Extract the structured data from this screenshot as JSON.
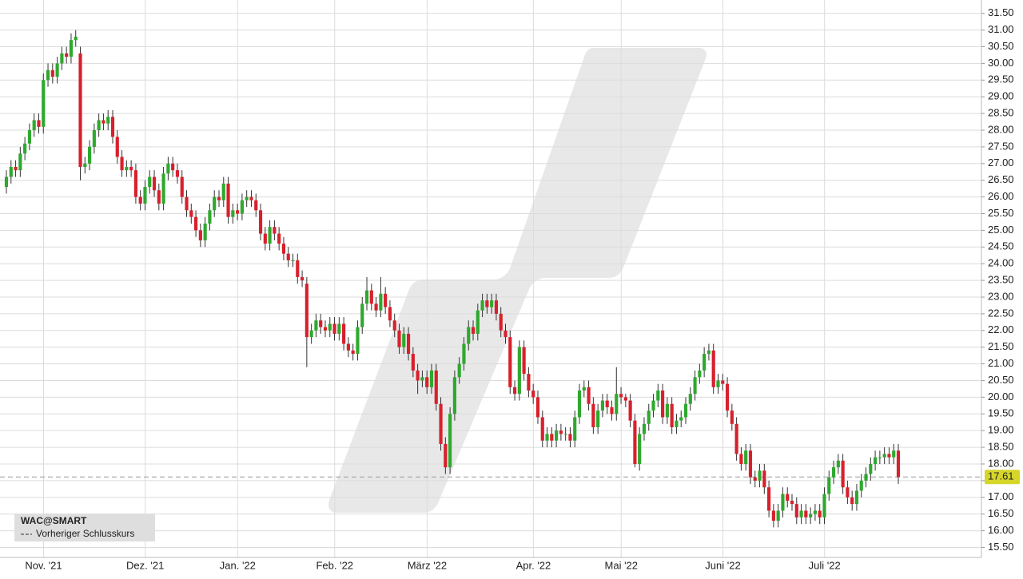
{
  "chart_data": {
    "type": "candlestick",
    "up_color": "#2fa82f",
    "down_color": "#d8202c",
    "grid": true,
    "legend": {
      "symbol": "WAC@SMART",
      "line_label": "Vorheriger Schlusskurs"
    },
    "reference_line": {
      "value": 17.61,
      "color": "#999999"
    },
    "ylim": [
      15.2,
      31.9
    ],
    "yticks": [
      {
        "value": 15.5,
        "label": "15.50"
      },
      {
        "value": 16,
        "label": "16.00"
      },
      {
        "value": 16.5,
        "label": "16.50"
      },
      {
        "value": 17,
        "label": "17.00"
      },
      {
        "value": 17.5,
        "label": "17.50"
      },
      {
        "value": 18,
        "label": "18.00"
      },
      {
        "value": 18.5,
        "label": "18.50"
      },
      {
        "value": 19,
        "label": "19.00"
      },
      {
        "value": 19.5,
        "label": "19.50"
      },
      {
        "value": 20,
        "label": "20.00"
      },
      {
        "value": 20.5,
        "label": "20.50"
      },
      {
        "value": 21,
        "label": "21.00"
      },
      {
        "value": 21.5,
        "label": "21.50"
      },
      {
        "value": 22,
        "label": "22.00"
      },
      {
        "value": 22.5,
        "label": "22.50"
      },
      {
        "value": 23,
        "label": "23.00"
      },
      {
        "value": 23.5,
        "label": "23.50"
      },
      {
        "value": 24,
        "label": "24.00"
      },
      {
        "value": 24.5,
        "label": "24.50"
      },
      {
        "value": 25,
        "label": "25.00"
      },
      {
        "value": 25.5,
        "label": "25.50"
      },
      {
        "value": 26,
        "label": "26.00"
      },
      {
        "value": 26.5,
        "label": "26.50"
      },
      {
        "value": 27,
        "label": "27.00"
      },
      {
        "value": 27.5,
        "label": "27.50"
      },
      {
        "value": 28,
        "label": "28.00"
      },
      {
        "value": 28.5,
        "label": "28.50"
      },
      {
        "value": 29,
        "label": "29.00"
      },
      {
        "value": 29.5,
        "label": "29.50"
      },
      {
        "value": 30,
        "label": "30.00"
      },
      {
        "value": 30.5,
        "label": "30.50"
      },
      {
        "value": 31,
        "label": "31.00"
      },
      {
        "value": 31.5,
        "label": "31.50"
      }
    ],
    "categories": [
      null,
      null,
      null,
      null,
      null,
      null,
      null,
      "Nov. '21",
      null,
      null,
      null,
      null,
      null,
      null,
      null,
      null,
      null,
      null,
      null,
      null,
      null,
      null,
      null,
      null,
      null,
      null,
      null,
      null,
      null,
      "Dez. '21",
      null,
      null,
      null,
      null,
      null,
      null,
      null,
      null,
      null,
      null,
      null,
      null,
      null,
      null,
      null,
      null,
      null,
      null,
      null,
      "Jan. '22",
      null,
      null,
      null,
      null,
      null,
      null,
      null,
      null,
      null,
      null,
      null,
      null,
      null,
      null,
      null,
      null,
      null,
      null,
      null,
      null,
      "Feb. '22",
      null,
      null,
      null,
      null,
      null,
      null,
      null,
      null,
      null,
      null,
      null,
      null,
      null,
      null,
      null,
      null,
      null,
      null,
      null,
      "März '22",
      null,
      null,
      null,
      null,
      null,
      null,
      null,
      null,
      null,
      null,
      null,
      null,
      null,
      null,
      null,
      null,
      null,
      null,
      null,
      null,
      null,
      null,
      "Apr. '22",
      null,
      null,
      null,
      null,
      null,
      null,
      null,
      null,
      null,
      null,
      null,
      null,
      null,
      null,
      null,
      null,
      null,
      null,
      "Mai '22",
      null,
      null,
      null,
      null,
      null,
      null,
      null,
      null,
      null,
      null,
      null,
      null,
      null,
      null,
      null,
      null,
      null,
      null,
      null,
      null,
      null,
      "Juni '22",
      null,
      null,
      null,
      null,
      null,
      null,
      null,
      null,
      null,
      null,
      null,
      null,
      null,
      null,
      null,
      null,
      null,
      null,
      null,
      null,
      null,
      "Juli '22",
      null,
      null,
      null,
      null,
      null,
      null,
      null,
      null,
      null,
      null,
      null,
      null,
      null,
      null,
      null,
      null,
      null
    ],
    "open": [
      26.3,
      26.6,
      26.9,
      26.8,
      27.3,
      27.6,
      28.0,
      28.3,
      28.1,
      29.5,
      29.8,
      29.6,
      30.0,
      30.3,
      30.2,
      30.7,
      30.3,
      26.9,
      27.0,
      27.5,
      28.0,
      28.3,
      28.2,
      28.4,
      27.8,
      27.2,
      26.8,
      26.9,
      26.8,
      26.0,
      25.8,
      26.3,
      26.6,
      26.2,
      25.8,
      26.7,
      27.0,
      26.8,
      26.6,
      26.0,
      25.6,
      25.4,
      25.0,
      24.7,
      25.2,
      25.6,
      26.0,
      25.9,
      26.4,
      25.4,
      25.6,
      25.5,
      25.9,
      26.0,
      25.9,
      25.6,
      24.9,
      24.6,
      25.1,
      24.9,
      24.6,
      24.3,
      24.1,
      24.1,
      23.6,
      23.4,
      21.8,
      22.0,
      22.3,
      22.1,
      22.0,
      22.2,
      21.9,
      22.2,
      21.6,
      21.4,
      21.3,
      22.1,
      22.8,
      23.2,
      22.8,
      22.6,
      23.1,
      22.7,
      22.3,
      22.0,
      21.5,
      21.9,
      21.3,
      20.8,
      20.5,
      20.6,
      20.3,
      20.8,
      19.8,
      18.6,
      17.9,
      19.5,
      20.6,
      21.0,
      21.6,
      22.1,
      21.9,
      22.6,
      22.9,
      22.7,
      22.9,
      22.5,
      22.0,
      21.8,
      20.3,
      20.1,
      21.5,
      20.7,
      20.2,
      20.0,
      19.4,
      18.7,
      18.9,
      18.7,
      19.0,
      18.9,
      18.9,
      18.7,
      19.4,
      20.2,
      20.3,
      19.8,
      19.1,
      19.6,
      19.9,
      19.7,
      19.5,
      20.1,
      20.0,
      19.9,
      19.3,
      18.0,
      18.9,
      19.2,
      19.6,
      19.9,
      20.2,
      19.4,
      19.8,
      19.1,
      19.3,
      19.4,
      19.8,
      20.1,
      20.6,
      20.8,
      21.3,
      21.4,
      20.3,
      20.5,
      20.4,
      19.6,
      19.2,
      18.3,
      18.0,
      18.4,
      17.6,
      17.5,
      17.8,
      17.3,
      16.6,
      16.3,
      16.6,
      17.1,
      16.9,
      16.8,
      16.4,
      16.6,
      16.4,
      16.5,
      16.6,
      16.4,
      17.1,
      17.6,
      17.9,
      18.1,
      17.3,
      17.0,
      16.8,
      17.2,
      17.5,
      17.7,
      18.0,
      18.2,
      18.2,
      18.3,
      18.2,
      18.4
    ],
    "high": [
      26.8,
      27.1,
      27.1,
      27.5,
      27.8,
      28.2,
      28.5,
      28.5,
      29.7,
      30.0,
      30.0,
      30.2,
      30.5,
      30.5,
      30.9,
      31.0,
      30.5,
      27.2,
      27.7,
      28.2,
      28.5,
      28.5,
      28.6,
      28.6,
      28.0,
      27.4,
      27.1,
      27.1,
      27.0,
      26.2,
      26.5,
      26.8,
      26.8,
      26.4,
      26.9,
      27.2,
      27.2,
      27.0,
      26.8,
      26.2,
      25.8,
      25.6,
      25.2,
      25.4,
      25.8,
      26.2,
      26.2,
      26.6,
      26.6,
      25.8,
      25.8,
      26.1,
      26.2,
      26.2,
      26.1,
      25.8,
      25.1,
      25.3,
      25.3,
      25.1,
      24.8,
      24.5,
      24.3,
      24.3,
      23.8,
      23.6,
      22.2,
      22.5,
      22.5,
      22.3,
      22.4,
      22.4,
      22.4,
      22.4,
      21.8,
      21.6,
      22.3,
      23.0,
      23.6,
      23.4,
      23.0,
      23.6,
      23.3,
      22.9,
      22.5,
      22.2,
      22.1,
      22.1,
      21.5,
      21.0,
      20.8,
      20.8,
      21.0,
      21.0,
      20.0,
      18.8,
      19.7,
      20.8,
      21.2,
      21.8,
      22.3,
      22.3,
      22.8,
      23.1,
      23.1,
      23.1,
      23.1,
      22.7,
      22.2,
      22.0,
      20.5,
      21.7,
      21.7,
      20.9,
      20.4,
      20.2,
      19.6,
      19.1,
      19.1,
      19.2,
      19.2,
      19.1,
      19.1,
      19.6,
      20.4,
      20.5,
      20.5,
      20.0,
      19.8,
      20.1,
      20.1,
      19.9,
      20.9,
      20.3,
      20.1,
      20.1,
      19.5,
      19.1,
      19.4,
      19.8,
      20.1,
      20.4,
      20.4,
      20.0,
      20.0,
      19.5,
      19.6,
      20.0,
      20.3,
      20.8,
      21.0,
      21.5,
      21.6,
      21.6,
      20.7,
      20.7,
      20.6,
      19.8,
      19.4,
      18.5,
      18.6,
      18.6,
      17.8,
      18.0,
      18.0,
      17.5,
      16.8,
      16.8,
      17.3,
      17.3,
      17.1,
      17.0,
      16.8,
      16.8,
      16.7,
      16.8,
      16.8,
      17.3,
      17.8,
      18.1,
      18.3,
      18.3,
      17.5,
      17.2,
      17.4,
      17.7,
      17.9,
      18.2,
      18.4,
      18.4,
      18.5,
      18.5,
      18.6,
      18.6
    ],
    "low": [
      26.1,
      26.4,
      26.6,
      26.6,
      27.1,
      27.4,
      27.8,
      27.9,
      27.9,
      29.3,
      29.4,
      29.4,
      29.8,
      30.0,
      30.0,
      30.5,
      26.5,
      26.7,
      26.8,
      27.3,
      27.8,
      28.0,
      28.0,
      27.6,
      27.0,
      26.6,
      26.6,
      26.6,
      25.8,
      25.6,
      25.6,
      26.1,
      26.0,
      25.6,
      25.6,
      26.5,
      26.6,
      26.4,
      25.8,
      25.4,
      25.2,
      24.8,
      24.5,
      24.5,
      25.0,
      25.4,
      25.7,
      25.7,
      25.2,
      25.2,
      25.3,
      25.3,
      25.7,
      25.7,
      25.4,
      24.7,
      24.4,
      24.4,
      24.7,
      24.4,
      24.1,
      23.9,
      23.9,
      23.4,
      23.3,
      20.9,
      21.6,
      21.8,
      21.9,
      21.8,
      21.8,
      21.7,
      21.7,
      21.4,
      21.2,
      21.1,
      21.1,
      21.9,
      22.6,
      22.6,
      22.4,
      22.4,
      22.5,
      22.1,
      21.8,
      21.3,
      21.3,
      21.1,
      20.6,
      20.1,
      20.3,
      20.1,
      20.1,
      19.6,
      18.4,
      17.7,
      17.7,
      19.3,
      20.4,
      20.8,
      21.4,
      21.7,
      21.7,
      22.4,
      22.5,
      22.5,
      22.3,
      21.8,
      21.6,
      20.1,
      19.9,
      19.9,
      20.5,
      20.0,
      19.8,
      19.2,
      18.5,
      18.5,
      18.5,
      18.5,
      18.7,
      18.7,
      18.5,
      18.5,
      19.2,
      20.0,
      19.6,
      18.9,
      18.9,
      19.4,
      19.5,
      19.3,
      19.3,
      19.8,
      19.7,
      19.1,
      17.9,
      17.8,
      18.7,
      19.0,
      19.4,
      19.7,
      19.2,
      19.2,
      18.9,
      18.9,
      19.1,
      19.2,
      19.6,
      19.9,
      20.4,
      20.6,
      21.1,
      20.1,
      20.1,
      20.2,
      19.4,
      19.0,
      18.1,
      17.8,
      17.8,
      17.4,
      17.3,
      17.3,
      17.1,
      16.4,
      16.1,
      16.1,
      16.4,
      16.7,
      16.6,
      16.2,
      16.2,
      16.2,
      16.2,
      16.3,
      16.2,
      16.2,
      16.9,
      17.4,
      17.7,
      17.1,
      16.8,
      16.6,
      16.6,
      17.0,
      17.3,
      17.5,
      17.8,
      18.0,
      18.0,
      18.0,
      18.0,
      17.4
    ],
    "close": [
      26.6,
      26.9,
      26.8,
      27.3,
      27.6,
      28.0,
      28.3,
      28.1,
      29.5,
      29.8,
      29.6,
      30.0,
      30.3,
      30.2,
      30.7,
      30.8,
      26.9,
      27.0,
      27.5,
      28.0,
      28.3,
      28.2,
      28.4,
      27.8,
      27.2,
      26.8,
      26.9,
      26.8,
      26.0,
      25.8,
      26.3,
      26.6,
      26.2,
      25.8,
      26.7,
      27.0,
      26.8,
      26.6,
      26.0,
      25.6,
      25.4,
      25.0,
      24.7,
      25.2,
      25.6,
      26.0,
      25.9,
      26.4,
      25.4,
      25.6,
      25.5,
      25.9,
      26.0,
      25.9,
      25.6,
      24.9,
      24.6,
      25.1,
      24.9,
      24.6,
      24.3,
      24.1,
      24.1,
      23.6,
      23.5,
      21.8,
      22.0,
      22.3,
      22.1,
      22.0,
      22.2,
      21.9,
      22.2,
      21.6,
      21.4,
      21.3,
      22.1,
      22.8,
      23.2,
      22.8,
      22.6,
      23.1,
      22.7,
      22.3,
      22.0,
      21.5,
      21.9,
      21.3,
      20.8,
      20.5,
      20.6,
      20.3,
      20.8,
      19.8,
      18.6,
      17.9,
      19.5,
      20.6,
      21.0,
      21.6,
      22.1,
      21.9,
      22.6,
      22.9,
      22.7,
      22.9,
      22.5,
      22.0,
      21.8,
      20.3,
      20.1,
      21.5,
      20.7,
      20.2,
      20.0,
      19.4,
      18.7,
      18.9,
      18.7,
      19.0,
      18.9,
      18.9,
      18.7,
      19.4,
      20.2,
      20.3,
      19.8,
      19.1,
      19.6,
      19.9,
      19.7,
      19.5,
      20.1,
      20.0,
      19.9,
      19.3,
      18.0,
      18.9,
      19.2,
      19.6,
      19.9,
      20.2,
      19.4,
      19.8,
      19.1,
      19.3,
      19.4,
      19.8,
      20.1,
      20.6,
      20.8,
      21.3,
      21.4,
      20.3,
      20.5,
      20.4,
      19.6,
      19.2,
      18.3,
      18.0,
      18.4,
      17.6,
      17.5,
      17.8,
      17.3,
      16.6,
      16.3,
      16.6,
      17.1,
      16.9,
      16.8,
      16.4,
      16.6,
      16.4,
      16.5,
      16.6,
      16.4,
      17.1,
      17.6,
      17.9,
      18.1,
      17.3,
      17.0,
      16.8,
      17.2,
      17.5,
      17.7,
      18.0,
      18.2,
      18.2,
      18.3,
      18.2,
      18.4,
      17.61
    ]
  }
}
